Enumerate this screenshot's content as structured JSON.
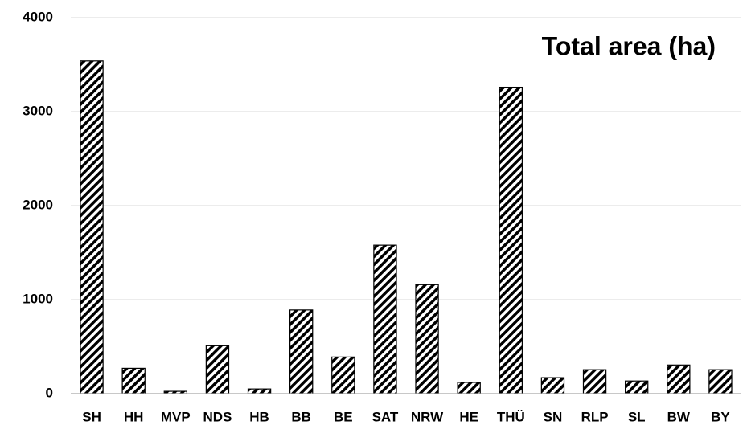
{
  "chart_data": {
    "type": "bar",
    "title": "Total area (ha)",
    "categories": [
      "SH",
      "HH",
      "MVP",
      "NDS",
      "HB",
      "BB",
      "BE",
      "SAT",
      "NRW",
      "HE",
      "THÜ",
      "SN",
      "RLP",
      "SL",
      "BW",
      "BY"
    ],
    "values": [
      3540,
      270,
      25,
      510,
      50,
      890,
      390,
      1580,
      1160,
      120,
      3260,
      170,
      255,
      135,
      305,
      255
    ],
    "color": "#000000",
    "hatch": true,
    "ylim": [
      0,
      4000
    ],
    "yticks": [
      0,
      1000,
      2000,
      3000,
      4000
    ],
    "grid": true
  }
}
